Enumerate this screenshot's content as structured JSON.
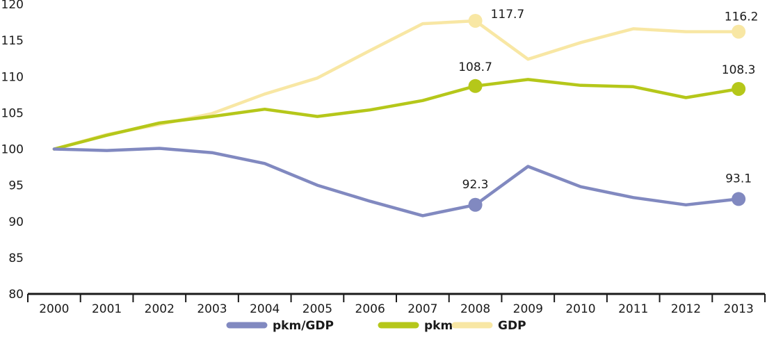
{
  "chart_data": {
    "type": "line",
    "title": "",
    "xlabel": "",
    "ylabel": "",
    "x": [
      "2000",
      "2001",
      "2002",
      "2003",
      "2004",
      "2005",
      "2006",
      "2007",
      "2008",
      "2009",
      "2010",
      "2011",
      "2012",
      "2013"
    ],
    "ylim": [
      80,
      120
    ],
    "yticks": [
      80,
      85,
      90,
      95,
      100,
      105,
      110,
      115,
      120
    ],
    "grid": false,
    "legend_position": "bottom",
    "series": [
      {
        "name": "GDP",
        "color": "#f8e7a4",
        "values": [
          100,
          102,
          103.4,
          104.9,
          107.6,
          109.8,
          113.6,
          117.3,
          117.7,
          112.4,
          114.7,
          116.6,
          116.2,
          116.2
        ],
        "labels": [
          {
            "index": 8,
            "text": "117.7"
          },
          {
            "index": 13,
            "text": "116.2"
          }
        ]
      },
      {
        "name": "pkm",
        "color": "#b5c71a",
        "values": [
          100,
          101.9,
          103.6,
          104.5,
          105.5,
          104.5,
          105.4,
          106.7,
          108.7,
          109.6,
          108.8,
          108.6,
          107.1,
          108.3
        ],
        "labels": [
          {
            "index": 8,
            "text": "108.7"
          },
          {
            "index": 13,
            "text": "108.3"
          }
        ]
      },
      {
        "name": "pkm/GDP",
        "color": "#8189c0",
        "values": [
          100,
          99.8,
          100.1,
          99.5,
          98.0,
          95.0,
          92.8,
          90.8,
          92.3,
          97.6,
          94.8,
          93.3,
          92.3,
          93.1
        ],
        "labels": [
          {
            "index": 8,
            "text": "92.3"
          },
          {
            "index": 13,
            "text": "93.1"
          }
        ]
      }
    ],
    "legend": [
      "pkm/GDP",
      "pkm",
      "GDP"
    ]
  }
}
